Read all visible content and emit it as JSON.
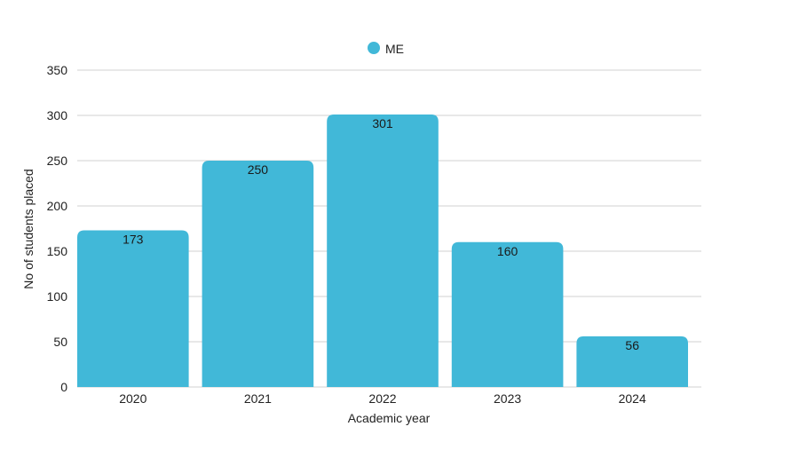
{
  "chart_data": {
    "type": "bar",
    "categories": [
      "2020",
      "2021",
      "2022",
      "2023",
      "2024"
    ],
    "series": [
      {
        "name": "ME",
        "values": [
          173,
          250,
          301,
          160,
          56
        ],
        "color": "#41b8d8"
      }
    ],
    "xlabel": "Academic year",
    "ylabel": "No of students placed",
    "ylim": [
      0,
      350
    ],
    "yticks": [
      0,
      50,
      100,
      150,
      200,
      250,
      300,
      350
    ],
    "grid": true,
    "legend": "top-center",
    "data_labels": true
  }
}
